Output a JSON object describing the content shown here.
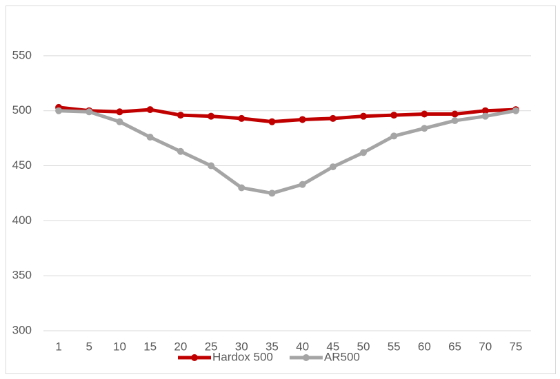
{
  "chart_data": {
    "type": "line",
    "categories": [
      1,
      5,
      10,
      15,
      20,
      25,
      30,
      35,
      40,
      45,
      50,
      55,
      60,
      65,
      70,
      75
    ],
    "series": [
      {
        "name": "Hardox 500",
        "color": "#c00000",
        "values": [
          503,
          500,
          499,
          501,
          496,
          495,
          493,
          490,
          492,
          493,
          495,
          496,
          497,
          497,
          500,
          501
        ]
      },
      {
        "name": "AR500",
        "color": "#a5a5a5",
        "values": [
          500,
          499,
          490,
          476,
          463,
          450,
          430,
          425,
          433,
          449,
          462,
          477,
          484,
          491,
          495,
          500
        ]
      }
    ],
    "ylim": [
      300,
      590
    ],
    "yticks": [
      300,
      350,
      400,
      450,
      500,
      550
    ],
    "grid": true,
    "legend": "bottom"
  }
}
